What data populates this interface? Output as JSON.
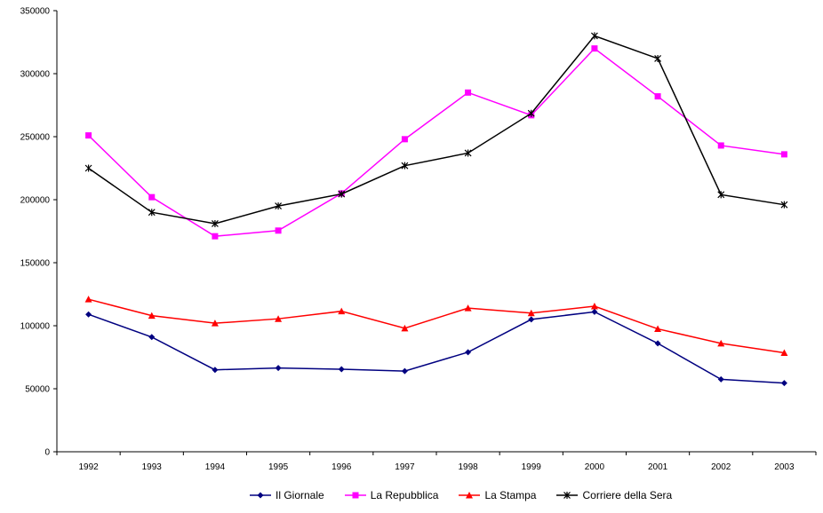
{
  "chart_data": {
    "type": "line",
    "title": "",
    "xlabel": "",
    "ylabel": "",
    "categories": [
      "1992",
      "1993",
      "1994",
      "1995",
      "1996",
      "1997",
      "1998",
      "1999",
      "2000",
      "2001",
      "2002",
      "2003"
    ],
    "ylim": [
      0,
      350000
    ],
    "yticks": [
      "0",
      "50000",
      "100000",
      "150000",
      "200000",
      "250000",
      "300000",
      "350000"
    ],
    "grid": false,
    "legend_position": "bottom",
    "series": [
      {
        "name": "Il Giornale",
        "color": "#000080",
        "marker": "diamond",
        "values": [
          109000,
          91000,
          65000,
          66500,
          65500,
          64000,
          79000,
          105000,
          111000,
          86000,
          57500,
          54500
        ]
      },
      {
        "name": "La Repubblica",
        "color": "#ff00ff",
        "marker": "square",
        "values": [
          251000,
          202000,
          171000,
          175500,
          205000,
          248000,
          285000,
          267000,
          320000,
          282000,
          243000,
          236000
        ]
      },
      {
        "name": "La Stampa",
        "color": "#ff0000",
        "marker": "triangle",
        "values": [
          121000,
          108000,
          102000,
          105500,
          111500,
          98000,
          114000,
          110000,
          115500,
          97500,
          86000,
          78500
        ]
      },
      {
        "name": "Corriere della Sera",
        "color": "#000000",
        "marker": "star",
        "values": [
          225000,
          190000,
          181000,
          195000,
          204500,
          227000,
          237000,
          268500,
          330000,
          312000,
          204000,
          196000
        ]
      }
    ]
  }
}
